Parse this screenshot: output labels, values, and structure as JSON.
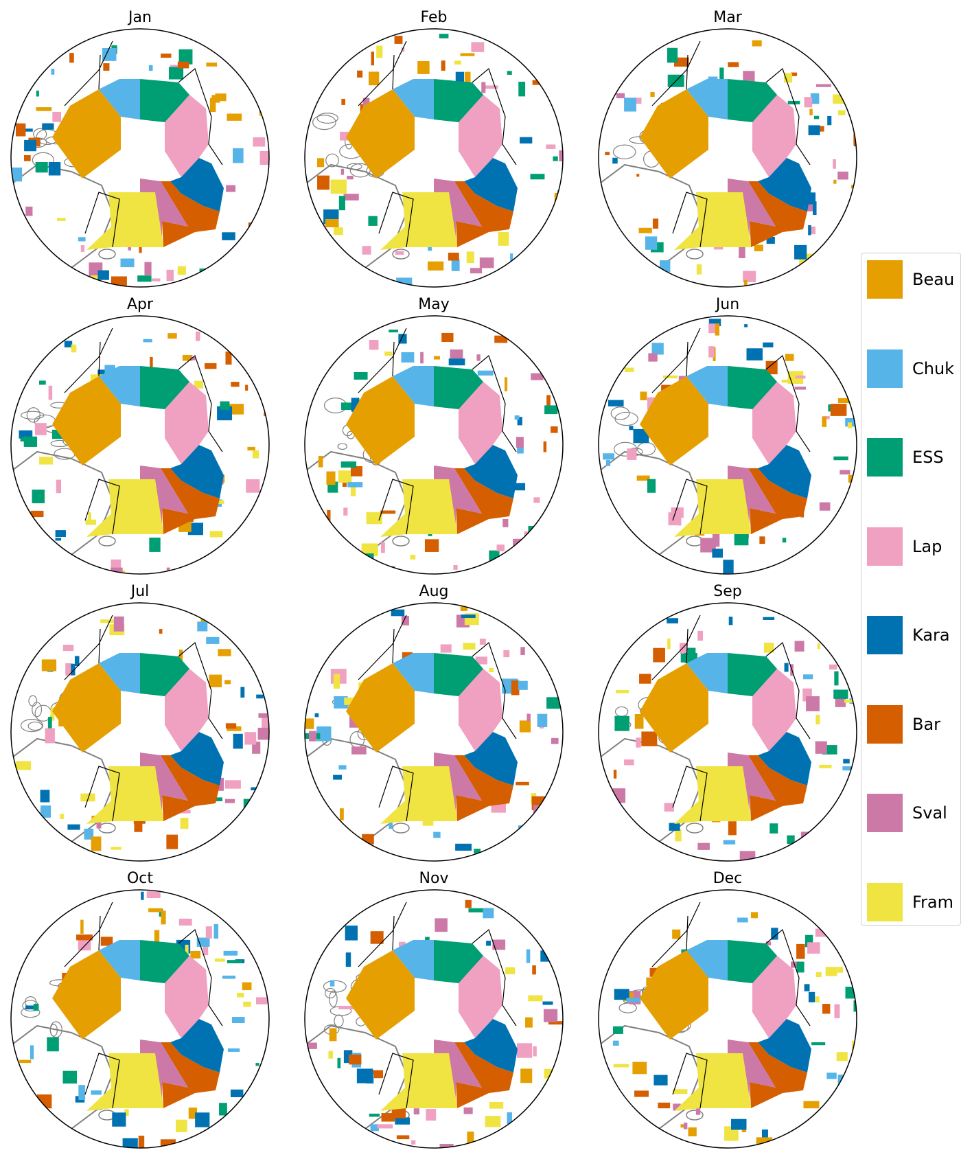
{
  "months": [
    "Jan",
    "Feb",
    "Mar",
    "Apr",
    "May",
    "Jun",
    "Jul",
    "Aug",
    "Sep",
    "Oct",
    "Nov",
    "Dec"
  ],
  "legend": [
    {
      "name": "Beau",
      "color": "#E69F00"
    },
    {
      "name": "Chuk",
      "color": "#56B4E9"
    },
    {
      "name": "ESS",
      "color": "#009E73"
    },
    {
      "name": "Lap",
      "color": "#F0A0C0"
    },
    {
      "name": "Kara",
      "color": "#0072B2"
    },
    {
      "name": "Bar",
      "color": "#D55E00"
    },
    {
      "name": "Sval",
      "color": "#CC79A7"
    },
    {
      "name": "Fram",
      "color": "#F0E442"
    }
  ],
  "land_outline_color": "#808080",
  "boundary_color": "#000000"
}
